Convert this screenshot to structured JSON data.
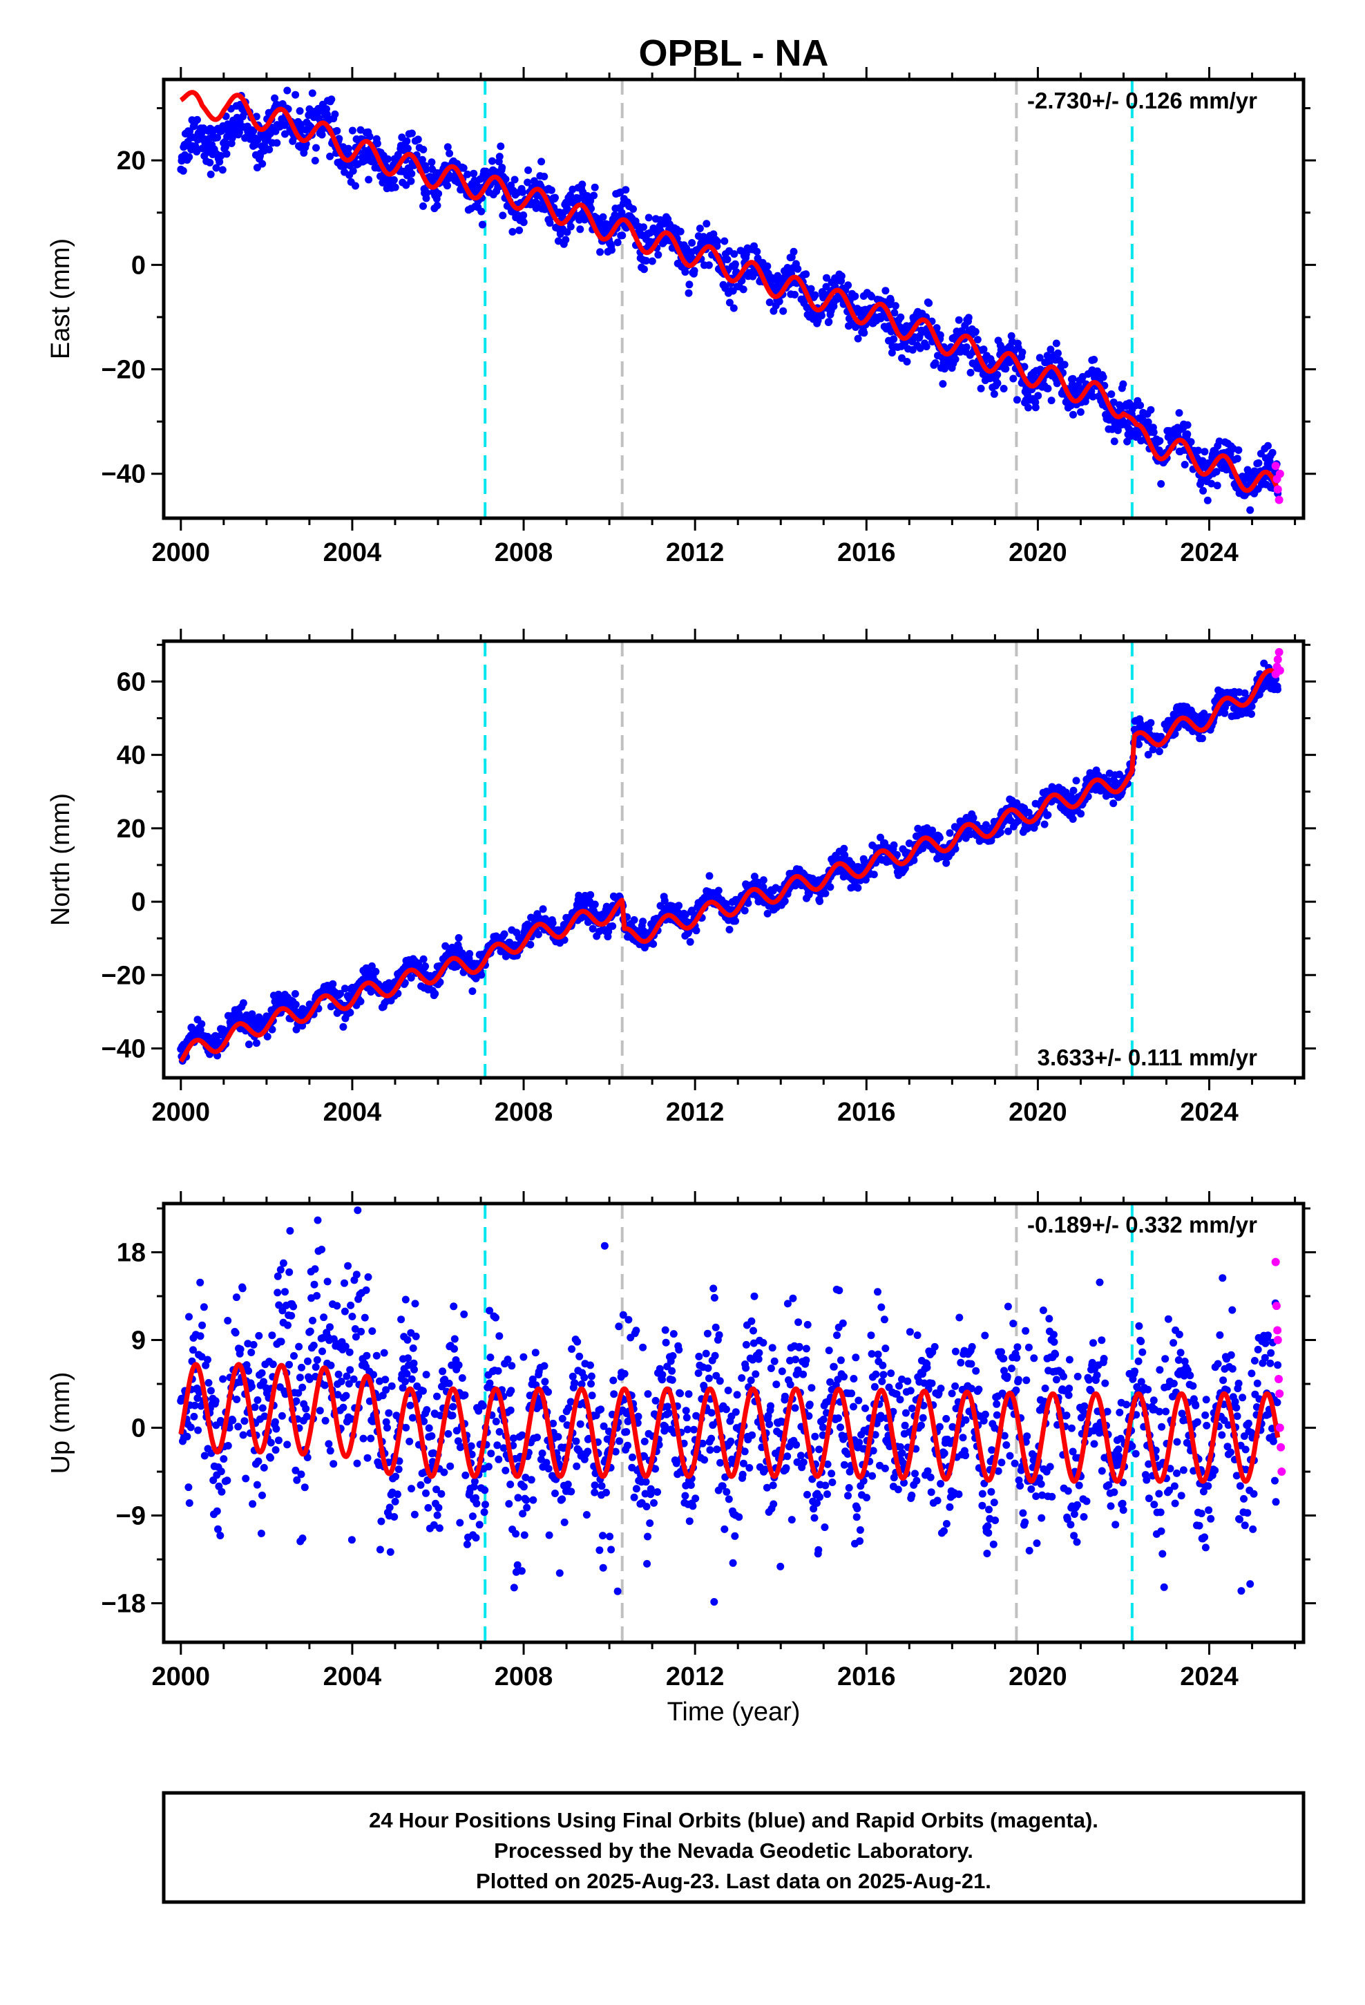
{
  "chart_data": {
    "title": "OPBL - NA",
    "xlabel": "Time (year)",
    "x_range": [
      1999.6,
      2026.2
    ],
    "x_ticks": [
      2000,
      2004,
      2008,
      2012,
      2016,
      2020,
      2024
    ],
    "x_tick_labels": [
      "2000",
      "2004",
      "2008",
      "2012",
      "2016",
      "2020",
      "2024"
    ],
    "x_minor_step": 1,
    "vertical_markers": [
      {
        "x": 2007.1,
        "color": "#00e5ee",
        "style": "dashed"
      },
      {
        "x": 2010.3,
        "color": "#c0c0c0",
        "style": "dashed"
      },
      {
        "x": 2019.5,
        "color": "#c0c0c0",
        "style": "dashed"
      },
      {
        "x": 2022.2,
        "color": "#00e5ee",
        "style": "dashed"
      }
    ],
    "colors": {
      "final": "#0000ff",
      "rapid": "#ff00ff",
      "model": "#ff0000"
    },
    "panels": [
      {
        "type": "scatter",
        "name": "east",
        "ylabel": "East (mm)",
        "ylim": [
          -48.5,
          35.5
        ],
        "y_ticks": [
          -40,
          -20,
          0,
          20
        ],
        "y_tick_labels": [
          "−40",
          "−20",
          "0",
          "20"
        ],
        "y_minor_step": 10,
        "rate_label": "-2.730+/- 0.126 mm/yr",
        "rate_position": "top-right",
        "data_points": [
          [
            2000.0,
            22
          ],
          [
            2001.0,
            25
          ],
          [
            2002.0,
            26
          ],
          [
            2003.0,
            28
          ],
          [
            2004.0,
            21
          ],
          [
            2006.0,
            17
          ],
          [
            2008.0,
            13
          ],
          [
            2010.0,
            8
          ],
          [
            2012.0,
            3
          ],
          [
            2014.0,
            -4
          ],
          [
            2016.0,
            -9
          ],
          [
            2018.0,
            -16
          ],
          [
            2020.0,
            -21
          ],
          [
            2022.0,
            -27
          ],
          [
            2022.3,
            -32
          ],
          [
            2024.0,
            -38
          ],
          [
            2025.6,
            -42
          ]
        ],
        "model_points": [
          [
            2000.0,
            33
          ],
          [
            2000.5,
            29
          ],
          [
            2001.0,
            31
          ],
          [
            2002.0,
            28
          ],
          [
            2003.0,
            26
          ],
          [
            2004.0,
            22
          ],
          [
            2006.0,
            17
          ],
          [
            2008.0,
            13
          ],
          [
            2010.0,
            7
          ],
          [
            2012.0,
            2
          ],
          [
            2014.0,
            -4
          ],
          [
            2016.0,
            -9
          ],
          [
            2018.0,
            -15
          ],
          [
            2019.5,
            -20
          ],
          [
            2020.0,
            -21
          ],
          [
            2022.0,
            -27
          ],
          [
            2022.3,
            -33
          ],
          [
            2024.0,
            -38
          ],
          [
            2025.6,
            -43
          ]
        ],
        "model_seasonal_mm": 2.5,
        "data_scatter_mm": 2.2,
        "rapid_points": [
          [
            2025.55,
            -38.5
          ],
          [
            2025.58,
            -41
          ],
          [
            2025.6,
            -43
          ],
          [
            2025.63,
            -45
          ],
          [
            2025.65,
            -40
          ]
        ]
      },
      {
        "type": "scatter",
        "name": "north",
        "ylabel": "North (mm)",
        "ylim": [
          -48,
          71
        ],
        "y_ticks": [
          -40,
          -20,
          0,
          20,
          40,
          60
        ],
        "y_tick_labels": [
          "−40",
          "−20",
          "0",
          "20",
          "40",
          "60"
        ],
        "y_minor_step": 10,
        "rate_label": "3.633+/- 0.111 mm/yr",
        "rate_position": "bottom-right",
        "data_points": [
          [
            2000.0,
            -40
          ],
          [
            2002.0,
            -32
          ],
          [
            2004.0,
            -25
          ],
          [
            2006.0,
            -18
          ],
          [
            2007.1,
            -15
          ],
          [
            2008.0,
            -9
          ],
          [
            2010.0,
            -2
          ],
          [
            2010.3,
            -3
          ],
          [
            2010.35,
            -9
          ],
          [
            2012.0,
            -3
          ],
          [
            2014.0,
            3
          ],
          [
            2016.0,
            10
          ],
          [
            2018.0,
            17
          ],
          [
            2020.0,
            25
          ],
          [
            2022.2,
            34
          ],
          [
            2022.25,
            44
          ],
          [
            2024.0,
            51
          ],
          [
            2025.6,
            60
          ]
        ],
        "model_points": [
          [
            2000.0,
            -42
          ],
          [
            2002.0,
            -33
          ],
          [
            2004.0,
            -26
          ],
          [
            2006.0,
            -19
          ],
          [
            2007.1,
            -16
          ],
          [
            2008.0,
            -10
          ],
          [
            2010.0,
            -3
          ],
          [
            2010.3,
            -2
          ],
          [
            2010.35,
            -10
          ],
          [
            2012.0,
            -4
          ],
          [
            2014.0,
            3
          ],
          [
            2016.0,
            10
          ],
          [
            2018.0,
            17
          ],
          [
            2020.0,
            25
          ],
          [
            2022.2,
            34
          ],
          [
            2022.25,
            43
          ],
          [
            2024.0,
            50
          ],
          [
            2025.6,
            62
          ]
        ],
        "model_seasonal_mm": 2.6,
        "data_scatter_mm": 1.8,
        "rapid_points": [
          [
            2025.55,
            62
          ],
          [
            2025.58,
            64
          ],
          [
            2025.6,
            66
          ],
          [
            2025.63,
            68
          ],
          [
            2025.65,
            63
          ]
        ]
      },
      {
        "type": "scatter",
        "name": "up",
        "ylabel": "Up (mm)",
        "ylim": [
          -22,
          23
        ],
        "y_ticks": [
          -18,
          -9,
          0,
          9,
          18
        ],
        "y_tick_labels": [
          "−18",
          "−9",
          "0",
          "9",
          "18"
        ],
        "y_minor_step": 4.5,
        "rate_label": "-0.189+/- 0.332 mm/yr",
        "rate_position": "top-right",
        "data_points": [
          [
            2000.0,
            2
          ],
          [
            2002.0,
            3
          ],
          [
            2003.0,
            7
          ],
          [
            2004.0,
            6
          ],
          [
            2005.0,
            0
          ],
          [
            2008.0,
            -1
          ],
          [
            2012.0,
            0
          ],
          [
            2016.0,
            1
          ],
          [
            2020.0,
            0
          ],
          [
            2024.0,
            -1
          ],
          [
            2025.6,
            0
          ]
        ],
        "model_points": [
          [
            2000.0,
            2
          ],
          [
            2002.0,
            2
          ],
          [
            2004.0,
            1.5
          ],
          [
            2005.0,
            -0.5
          ],
          [
            2010.0,
            -0.5
          ],
          [
            2015.0,
            -0.5
          ],
          [
            2020.0,
            -1
          ],
          [
            2025.6,
            -1
          ]
        ],
        "model_seasonal_mm": 4.5,
        "data_scatter_mm": 4.5,
        "rapid_points": [
          [
            2025.55,
            17
          ],
          [
            2025.57,
            12.5
          ],
          [
            2025.59,
            10
          ],
          [
            2025.6,
            9
          ],
          [
            2025.62,
            5
          ],
          [
            2025.64,
            3.5
          ],
          [
            2025.65,
            0
          ],
          [
            2025.67,
            -2
          ],
          [
            2025.69,
            -4.5
          ]
        ]
      }
    ],
    "footer_lines": [
      "24 Hour Positions Using Final Orbits (blue) and Rapid Orbits (magenta).",
      "Processed by the Nevada Geodetic Laboratory.",
      "Plotted on 2025-Aug-23. Last data on 2025-Aug-21."
    ]
  }
}
